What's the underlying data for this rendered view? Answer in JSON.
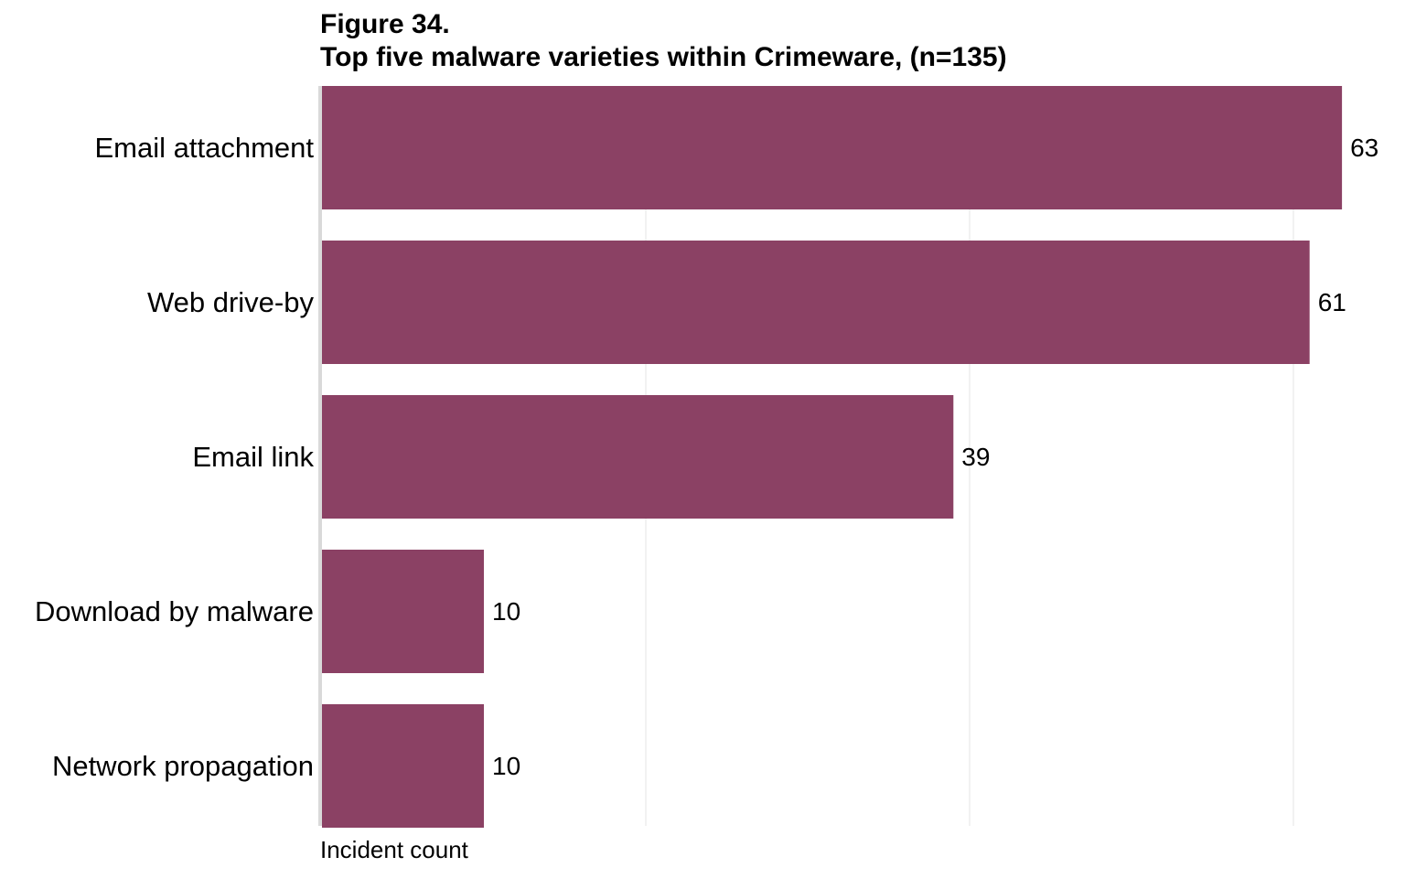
{
  "figure": {
    "number": "Figure 34.",
    "title": "Top five malware varieties within Crimeware, (n=135)"
  },
  "chart_data": {
    "type": "bar",
    "orientation": "horizontal",
    "categories": [
      "Email attachment",
      "Web drive-by",
      "Email link",
      "Download by malware",
      "Network propagation"
    ],
    "values": [
      63,
      61,
      39,
      10,
      10
    ],
    "xlabel": "Incident count",
    "ylabel": "",
    "xlim": [
      0,
      60
    ],
    "gridlines_x": [
      20,
      40,
      60
    ],
    "grid": true,
    "legend": "none",
    "colors": {
      "bar": "#8b4164",
      "grid": "#e6e6e6",
      "axis": "#d9d9d9",
      "text": "#000000"
    }
  }
}
